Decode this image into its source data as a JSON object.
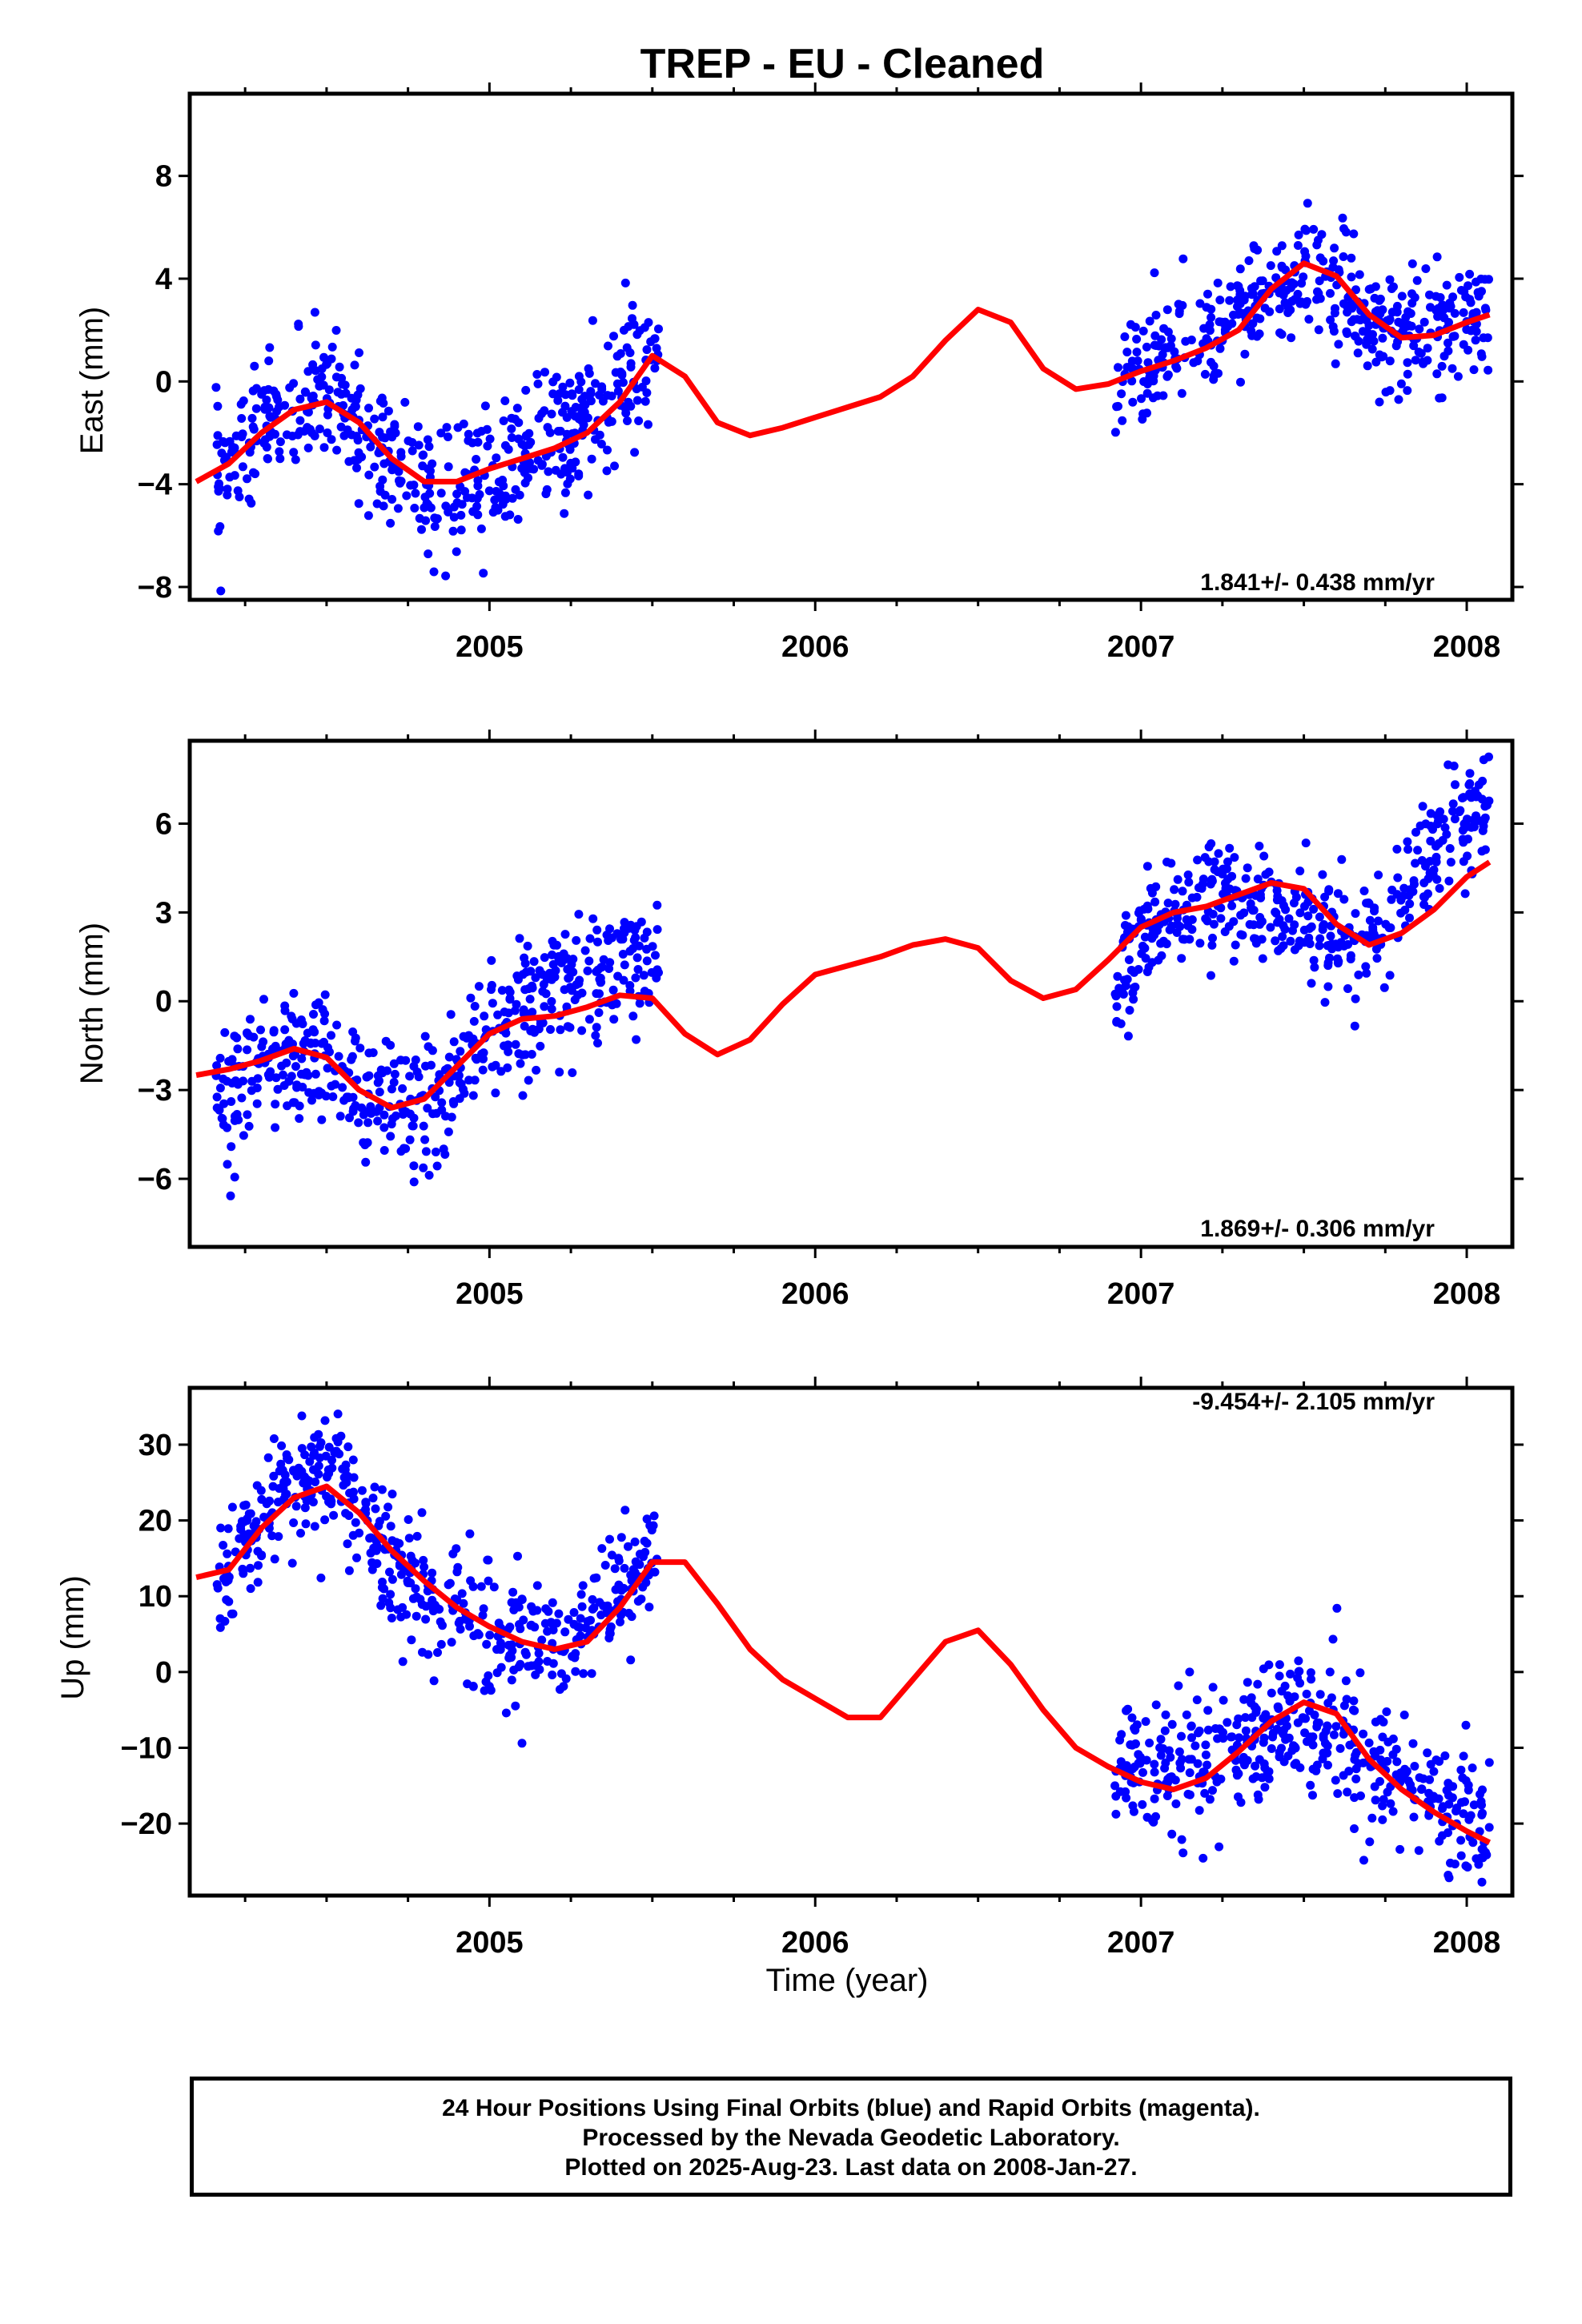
{
  "title": "TREP  - EU - Cleaned",
  "xlabel": "Time (year)",
  "footer": {
    "line1": "24 Hour Positions Using Final Orbits (blue) and Rapid Orbits (magenta).",
    "line2": "Processed by the Nevada Geodetic Laboratory.",
    "line3": "Plotted on 2025-Aug-23. Last data on 2008-Jan-27."
  },
  "colors": {
    "points": "#0000ff",
    "fit": "#ff0000",
    "axes": "#000000"
  },
  "chart_data": [
    {
      "type": "scatter",
      "name": "east",
      "ylabel": "East (mm)",
      "rate_label": "1.841+/- 0.438 mm/yr",
      "xlim": [
        2004.08,
        2008.14
      ],
      "ylim": [
        -8.5,
        11.2
      ],
      "xticks": [
        2005,
        2006,
        2007,
        2008
      ],
      "yticks": [
        -8,
        -4,
        0,
        4,
        8
      ],
      "grid": false,
      "fit_curve": {
        "x": [
          2004.1,
          2004.2,
          2004.3,
          2004.4,
          2004.5,
          2004.6,
          2004.7,
          2004.8,
          2004.9,
          2005.0,
          2005.1,
          2005.2,
          2005.3,
          2005.4,
          2005.5,
          2005.6,
          2005.7,
          2005.8,
          2005.9,
          2006.0,
          2006.1,
          2006.2,
          2006.3,
          2006.4,
          2006.5,
          2006.6,
          2006.7,
          2006.8,
          2006.9,
          2007.0,
          2007.1,
          2007.2,
          2007.3,
          2007.4,
          2007.5,
          2007.6,
          2007.7,
          2007.8,
          2007.9,
          2008.0,
          2008.07
        ],
        "y": [
          -3.9,
          -3.2,
          -2.0,
          -1.1,
          -0.8,
          -1.6,
          -3.0,
          -3.9,
          -3.9,
          -3.4,
          -3.0,
          -2.6,
          -2.0,
          -0.8,
          1.0,
          0.2,
          -1.6,
          -2.1,
          -1.8,
          -1.4,
          -1.0,
          -0.6,
          0.2,
          1.6,
          2.8,
          2.3,
          0.5,
          -0.3,
          -0.1,
          0.4,
          0.8,
          1.3,
          2.0,
          3.6,
          4.6,
          4.1,
          2.6,
          1.7,
          1.8,
          2.3,
          2.6
        ]
      },
      "segments": [
        {
          "x0": 2004.16,
          "x1": 2005.52,
          "drift": 0.3,
          "amp": 0.12,
          "noise": 1.3,
          "n": 520
        },
        {
          "x0": 2006.92,
          "x1": 2008.07,
          "drift": 0.0,
          "amp": 0.12,
          "noise": 1.1,
          "n": 440
        }
      ]
    },
    {
      "type": "scatter",
      "name": "north",
      "ylabel": "North (mm)",
      "rate_label": "1.869+/- 0.306 mm/yr",
      "xlim": [
        2004.08,
        2008.14
      ],
      "ylim": [
        -8.3,
        8.8
      ],
      "xticks": [
        2005,
        2006,
        2007,
        2008
      ],
      "yticks": [
        -6,
        -3,
        0,
        3,
        6
      ],
      "grid": false,
      "fit_curve": {
        "x": [
          2004.1,
          2004.2,
          2004.3,
          2004.4,
          2004.5,
          2004.6,
          2004.7,
          2004.8,
          2004.9,
          2005.0,
          2005.1,
          2005.2,
          2005.3,
          2005.4,
          2005.5,
          2005.6,
          2005.7,
          2005.8,
          2005.9,
          2006.0,
          2006.1,
          2006.2,
          2006.3,
          2006.4,
          2006.5,
          2006.6,
          2006.7,
          2006.8,
          2006.9,
          2007.0,
          2007.1,
          2007.2,
          2007.3,
          2007.4,
          2007.5,
          2007.6,
          2007.7,
          2007.8,
          2007.9,
          2008.0,
          2008.07
        ],
        "y": [
          -2.5,
          -2.3,
          -2.0,
          -1.6,
          -1.9,
          -3.0,
          -3.6,
          -3.3,
          -2.2,
          -1.1,
          -0.6,
          -0.5,
          -0.2,
          0.2,
          0.1,
          -1.1,
          -1.8,
          -1.3,
          -0.1,
          0.9,
          1.2,
          1.5,
          1.9,
          2.1,
          1.8,
          0.7,
          0.1,
          0.4,
          1.4,
          2.5,
          3.0,
          3.2,
          3.6,
          4.0,
          3.8,
          2.6,
          1.9,
          2.3,
          3.1,
          4.2,
          4.7
        ]
      },
      "segments": [
        {
          "x0": 2004.16,
          "x1": 2005.52,
          "drift": 0.8,
          "amp": 0.15,
          "noise": 1.1,
          "n": 520
        },
        {
          "x0": 2006.92,
          "x1": 2008.07,
          "drift": 1.2,
          "amp": 0.35,
          "noise": 1.0,
          "n": 440
        }
      ]
    },
    {
      "type": "scatter",
      "name": "up",
      "ylabel": "Up (mm)",
      "rate_label": "-9.454+/- 2.105 mm/yr",
      "xlim": [
        2004.08,
        2008.14
      ],
      "ylim": [
        -29.5,
        37.5
      ],
      "xticks": [
        2005,
        2006,
        2007,
        2008
      ],
      "yticks": [
        -20,
        -10,
        0,
        10,
        20,
        30
      ],
      "grid": false,
      "fit_curve": {
        "x": [
          2004.1,
          2004.2,
          2004.3,
          2004.4,
          2004.5,
          2004.6,
          2004.7,
          2004.8,
          2004.9,
          2005.0,
          2005.1,
          2005.2,
          2005.3,
          2005.4,
          2005.5,
          2005.6,
          2005.7,
          2005.8,
          2005.9,
          2006.0,
          2006.1,
          2006.2,
          2006.3,
          2006.4,
          2006.5,
          2006.6,
          2006.7,
          2006.8,
          2006.9,
          2007.0,
          2007.1,
          2007.2,
          2007.3,
          2007.4,
          2007.5,
          2007.6,
          2007.7,
          2007.8,
          2007.9,
          2008.0,
          2008.07
        ],
        "y": [
          12.5,
          13.5,
          19.0,
          23.0,
          24.5,
          21.0,
          16.0,
          12.0,
          8.5,
          6.0,
          4.0,
          3.0,
          4.0,
          8.5,
          14.5,
          14.5,
          9.0,
          3.0,
          -1.0,
          -3.5,
          -6.0,
          -6.0,
          -1.0,
          4.0,
          5.5,
          1.0,
          -5.0,
          -10.0,
          -12.5,
          -14.5,
          -15.5,
          -14.0,
          -10.5,
          -6.5,
          -4.0,
          -5.5,
          -11.5,
          -15.5,
          -18.5,
          -21.0,
          -22.5
        ]
      },
      "segments": [
        {
          "x0": 2004.16,
          "x1": 2005.52,
          "drift": 0.0,
          "amp": 0.2,
          "noise": 4.0,
          "n": 520
        },
        {
          "x0": 2006.92,
          "x1": 2008.07,
          "drift": 0.0,
          "amp": 0.25,
          "noise": 4.5,
          "n": 440
        }
      ]
    }
  ]
}
